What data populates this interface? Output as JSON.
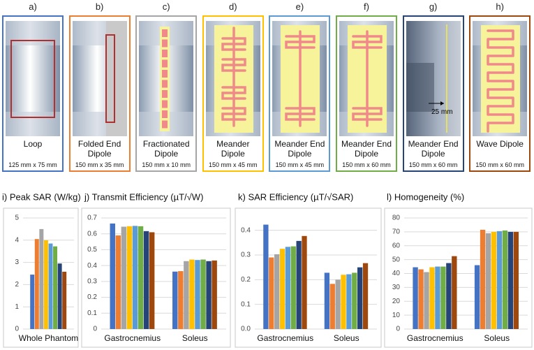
{
  "panels": [
    {
      "letter": "a)",
      "name": "Loop",
      "size": "125 mm x 75 mm",
      "border": "#4472c4",
      "kind": "loop"
    },
    {
      "letter": "b)",
      "name": "Folded End Dipole",
      "size": "150 mm x 35 mm",
      "border": "#ed7d31",
      "kind": "folded"
    },
    {
      "letter": "c)",
      "name": "Fractionated Dipole",
      "size": "150 mm x 10 mm",
      "border": "#a5a5a5",
      "kind": "fractionated"
    },
    {
      "letter": "d)",
      "name": "Meander Dipole",
      "size": "150 mm x 45 mm",
      "border": "#ffc000",
      "kind": "meander"
    },
    {
      "letter": "e)",
      "name": "Meander End Dipole",
      "size": "150 mm x 45 mm",
      "border": "#5b9bd5",
      "kind": "meanderend"
    },
    {
      "letter": "f)",
      "name": "Meander End Dipole",
      "size": "150 mm x 60 mm",
      "border": "#70ad47",
      "kind": "meanderend"
    },
    {
      "letter": "g)",
      "name": "Meander End Dipole",
      "size": "150 mm x 60 mm",
      "border": "#264478",
      "kind": "side",
      "annotation": "25 mm"
    },
    {
      "letter": "h)",
      "name": "Wave Dipole",
      "size": "150 mm x 60 mm",
      "border": "#9e480e",
      "kind": "wave"
    }
  ],
  "chart_data": [
    {
      "type": "bar",
      "title": "i) Peak SAR (W/kg)",
      "categories": [
        "Whole Phantom"
      ],
      "ylim": [
        0,
        5
      ],
      "yticks": [
        0,
        1,
        2,
        3,
        4,
        5
      ],
      "grid": true,
      "series": [
        {
          "color": "#4472c4",
          "values": [
            2.45
          ]
        },
        {
          "color": "#ed7d31",
          "values": [
            4.05
          ]
        },
        {
          "color": "#a5a5a5",
          "values": [
            4.5
          ]
        },
        {
          "color": "#ffc000",
          "values": [
            4.0
          ]
        },
        {
          "color": "#5b9bd5",
          "values": [
            3.85
          ]
        },
        {
          "color": "#70ad47",
          "values": [
            3.72
          ]
        },
        {
          "color": "#264478",
          "values": [
            2.95
          ]
        },
        {
          "color": "#9e480e",
          "values": [
            2.58
          ]
        }
      ]
    },
    {
      "type": "bar",
      "title": "j) Transmit Efficiency (µT/√W)",
      "categories": [
        "Gastrocnemius",
        "Soleus"
      ],
      "ylim": [
        0,
        0.7
      ],
      "yticks": [
        0,
        0.1,
        0.2,
        0.3,
        0.4,
        0.5,
        0.6,
        0.7
      ],
      "grid": true,
      "series": [
        {
          "color": "#4472c4",
          "values": [
            0.665,
            0.362
          ]
        },
        {
          "color": "#ed7d31",
          "values": [
            0.59,
            0.365
          ]
        },
        {
          "color": "#a5a5a5",
          "values": [
            0.645,
            0.428
          ]
        },
        {
          "color": "#ffc000",
          "values": [
            0.648,
            0.438
          ]
        },
        {
          "color": "#5b9bd5",
          "values": [
            0.65,
            0.435
          ]
        },
        {
          "color": "#70ad47",
          "values": [
            0.648,
            0.438
          ]
        },
        {
          "color": "#264478",
          "values": [
            0.617,
            0.428
          ]
        },
        {
          "color": "#9e480e",
          "values": [
            0.61,
            0.432
          ]
        }
      ]
    },
    {
      "type": "bar",
      "title": "k) SAR Efficiency (µT/√SAR)",
      "categories": [
        "Gastrocnemius",
        "Soleus"
      ],
      "ylim": [
        0,
        0.45
      ],
      "yticks": [
        {
          "value": 0,
          "label": "0.0"
        },
        0.1,
        0.2,
        0.3,
        0.4
      ],
      "grid": true,
      "series": [
        {
          "color": "#4472c4",
          "values": [
            0.423,
            0.228
          ]
        },
        {
          "color": "#ed7d31",
          "values": [
            0.29,
            0.183
          ]
        },
        {
          "color": "#a5a5a5",
          "values": [
            0.303,
            0.2
          ]
        },
        {
          "color": "#ffc000",
          "values": [
            0.325,
            0.22
          ]
        },
        {
          "color": "#5b9bd5",
          "values": [
            0.333,
            0.222
          ]
        },
        {
          "color": "#70ad47",
          "values": [
            0.335,
            0.228
          ]
        },
        {
          "color": "#264478",
          "values": [
            0.357,
            0.25
          ]
        },
        {
          "color": "#9e480e",
          "values": [
            0.377,
            0.267
          ]
        }
      ]
    },
    {
      "type": "bar",
      "title": "l) Homogeneity (%)",
      "categories": [
        "Gastrocnemius",
        "Soleus"
      ],
      "ylim": [
        0,
        80
      ],
      "yticks": [
        0,
        10,
        20,
        30,
        40,
        50,
        60,
        70,
        80
      ],
      "grid": true,
      "series": [
        {
          "color": "#4472c4",
          "values": [
            44.5,
            46
          ]
        },
        {
          "color": "#ed7d31",
          "values": [
            43,
            71.5
          ]
        },
        {
          "color": "#a5a5a5",
          "values": [
            41,
            69
          ]
        },
        {
          "color": "#ffc000",
          "values": [
            44.5,
            70
          ]
        },
        {
          "color": "#5b9bd5",
          "values": [
            45,
            70.5
          ]
        },
        {
          "color": "#70ad47",
          "values": [
            45,
            71
          ]
        },
        {
          "color": "#264478",
          "values": [
            47.5,
            70
          ]
        },
        {
          "color": "#9e480e",
          "values": [
            52.5,
            70
          ]
        }
      ]
    }
  ]
}
